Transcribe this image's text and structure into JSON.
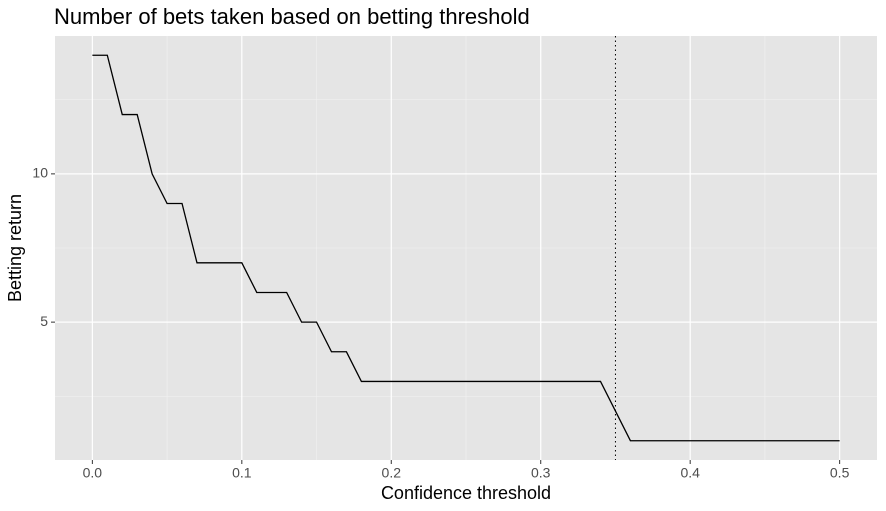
{
  "chart_data": {
    "type": "line",
    "title": "Number of bets taken based on betting threshold",
    "x_label": "Confidence threshold",
    "y_label": "Betting return",
    "x": [
      0,
      0.01,
      0.02,
      0.03,
      0.04,
      0.05,
      0.06,
      0.07,
      0.08,
      0.09,
      0.1,
      0.11,
      0.12,
      0.13,
      0.14,
      0.15,
      0.16,
      0.17,
      0.18,
      0.19,
      0.2,
      0.21,
      0.22,
      0.23,
      0.24,
      0.25,
      0.26,
      0.27,
      0.28,
      0.29,
      0.3,
      0.31,
      0.32,
      0.33,
      0.34,
      0.35,
      0.36,
      0.37,
      0.38,
      0.39,
      0.4,
      0.41,
      0.42,
      0.43,
      0.44,
      0.45,
      0.46,
      0.47,
      0.48,
      0.49,
      0.5
    ],
    "values": [
      14,
      14,
      12,
      12,
      10,
      9,
      9,
      7,
      7,
      7,
      7,
      6,
      6,
      6,
      5,
      5,
      4,
      4,
      3,
      3,
      3,
      3,
      3,
      3,
      3,
      3,
      3,
      3,
      3,
      3,
      3,
      3,
      3,
      3,
      3,
      2,
      1,
      1,
      1,
      1,
      1,
      1,
      1,
      1,
      1,
      1,
      1,
      1,
      1,
      1,
      1
    ],
    "color": "#000000",
    "xlim": [
      -0.025,
      0.525
    ],
    "ylim": [
      0.35,
      14.65
    ],
    "xticks": [
      {
        "value": 0,
        "label": "0.0"
      },
      0.1,
      0.2,
      0.3,
      0.4,
      0.5
    ],
    "yticks": [
      5,
      10
    ],
    "x_minor_ticks": [
      0.05,
      0.15,
      0.25,
      0.35,
      0.45
    ],
    "y_minor_ticks": [
      2.5,
      7.5,
      12.5
    ],
    "vline": 0.35,
    "grid": true
  }
}
